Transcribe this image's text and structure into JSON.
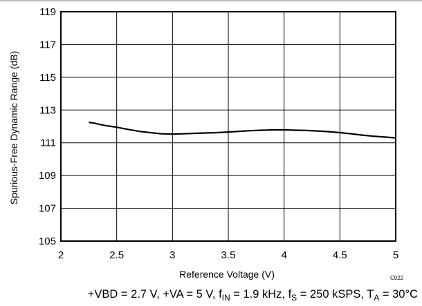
{
  "chart_data": {
    "type": "line",
    "xlabel": "Reference Voltage (V)",
    "ylabel": "Spurious-Free Dynamic Range (dB)",
    "xlim": [
      2,
      5
    ],
    "ylim": [
      105,
      119
    ],
    "xticks": [
      2,
      2.5,
      3,
      3.5,
      4,
      4.5,
      5
    ],
    "xtick_labels": [
      "2",
      "2.5",
      "3",
      "3.5",
      "4",
      "4.5",
      "5"
    ],
    "yticks": [
      105,
      107,
      109,
      111,
      113,
      115,
      117,
      119
    ],
    "ytick_labels": [
      "105",
      "107",
      "109",
      "111",
      "113",
      "115",
      "117",
      "119"
    ],
    "grid": true,
    "series": [
      {
        "color": "#000000",
        "x": [
          2.25,
          2.3,
          2.35,
          2.4,
          2.45,
          2.5,
          2.6,
          2.7,
          2.8,
          2.9,
          3.0,
          3.1,
          3.2,
          3.3,
          3.4,
          3.5,
          3.6,
          3.7,
          3.8,
          3.9,
          4.0,
          4.1,
          4.2,
          4.3,
          4.4,
          4.5,
          4.6,
          4.7,
          4.8,
          4.9,
          5.0
        ],
        "y": [
          112.25,
          112.2,
          112.12,
          112.05,
          112.0,
          111.95,
          111.82,
          111.7,
          111.62,
          111.55,
          111.53,
          111.55,
          111.58,
          111.6,
          111.62,
          111.66,
          111.7,
          111.74,
          111.77,
          111.79,
          111.79,
          111.77,
          111.75,
          111.72,
          111.68,
          111.62,
          111.55,
          111.47,
          111.4,
          111.35,
          111.3
        ]
      }
    ],
    "code_label": "C022"
  },
  "caption": {
    "prefix": "+VBD = 2.7 V, +VA = 5 V, f",
    "fin_sub": "IN",
    "fin_val": " = 1.9 kHz, f",
    "fs_sub": "S",
    "fs_val": " = 250 kSPS, T",
    "ta_sub": "A",
    "ta_val": " = 30°C"
  }
}
